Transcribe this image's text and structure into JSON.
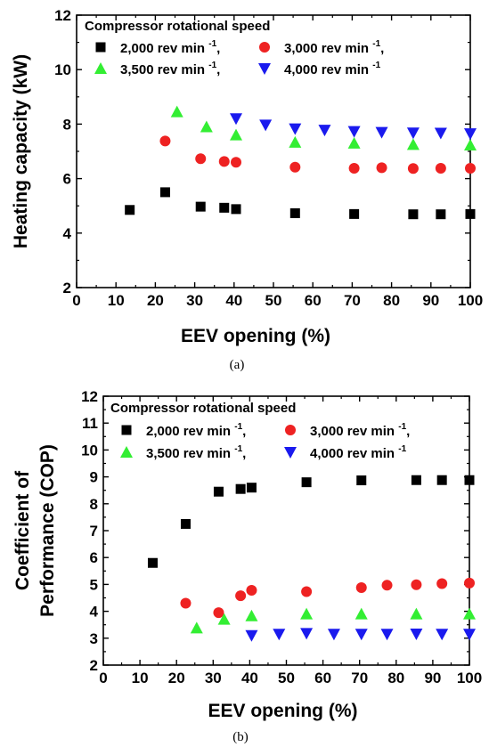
{
  "chart_data": [
    {
      "type": "scatter",
      "panel_label": "(a)",
      "xlabel": "EEV opening (%)",
      "ylabel": "Heating capacity (kW)",
      "xlim": [
        0,
        100
      ],
      "ylim": [
        2,
        12
      ],
      "xticks": [
        0,
        10,
        20,
        30,
        40,
        50,
        60,
        70,
        80,
        90,
        100
      ],
      "yticks": [
        2,
        4,
        6,
        8,
        10,
        12
      ],
      "legend_title": "Compressor rotational speed",
      "legend_position": "top-left",
      "series": [
        {
          "name": "2,000 rev min",
          "unit_exponent": "-1",
          "sep": ",",
          "marker": "square",
          "color": "#000000",
          "points": [
            [
              13.5,
              4.85
            ],
            [
              22.5,
              5.5
            ],
            [
              31.5,
              4.97
            ],
            [
              37.5,
              4.93
            ],
            [
              40.5,
              4.88
            ],
            [
              55.5,
              4.73
            ],
            [
              70.5,
              4.7
            ],
            [
              85.5,
              4.69
            ],
            [
              92.5,
              4.69
            ],
            [
              100,
              4.7
            ]
          ]
        },
        {
          "name": "3,000 rev min",
          "unit_exponent": "-1",
          "sep": ",",
          "marker": "circle",
          "color": "#ee2222",
          "points": [
            [
              22.5,
              7.38
            ],
            [
              31.5,
              6.73
            ],
            [
              37.5,
              6.63
            ],
            [
              40.5,
              6.6
            ],
            [
              55.5,
              6.42
            ],
            [
              70.5,
              6.38
            ],
            [
              77.5,
              6.4
            ],
            [
              85.5,
              6.37
            ],
            [
              92.5,
              6.38
            ],
            [
              100,
              6.38
            ]
          ]
        },
        {
          "name": "3,500 rev min",
          "unit_exponent": "-1",
          "sep": ",",
          "marker": "triangle-up",
          "color": "#33ee33",
          "points": [
            [
              25.5,
              8.45
            ],
            [
              33,
              7.9
            ],
            [
              40.5,
              7.6
            ],
            [
              55.5,
              7.33
            ],
            [
              70.5,
              7.3
            ],
            [
              85.5,
              7.25
            ],
            [
              100,
              7.23
            ]
          ]
        },
        {
          "name": "4,000 rev min",
          "unit_exponent": "-1",
          "sep": "",
          "marker": "triangle-down",
          "color": "#1a1aee",
          "points": [
            [
              40.5,
              8.2
            ],
            [
              48,
              7.97
            ],
            [
              55.5,
              7.83
            ],
            [
              63,
              7.78
            ],
            [
              70.5,
              7.73
            ],
            [
              77.5,
              7.7
            ],
            [
              85.5,
              7.68
            ],
            [
              92.5,
              7.67
            ],
            [
              100,
              7.65
            ]
          ]
        }
      ]
    },
    {
      "type": "scatter",
      "panel_label": "(b)",
      "xlabel": "EEV opening (%)",
      "ylabel_lines": [
        "Coefficient of",
        "Performance (COP)"
      ],
      "xlim": [
        0,
        100
      ],
      "ylim": [
        2,
        12
      ],
      "xticks": [
        0,
        10,
        20,
        30,
        40,
        50,
        60,
        70,
        80,
        90,
        100
      ],
      "yticks": [
        2,
        3,
        4,
        5,
        6,
        7,
        8,
        9,
        10,
        11,
        12
      ],
      "legend_title": "Compressor rotational speed",
      "legend_position": "top-left",
      "series": [
        {
          "name": "2,000 rev min",
          "unit_exponent": "-1",
          "sep": ",",
          "marker": "square",
          "color": "#000000",
          "points": [
            [
              13.5,
              5.8
            ],
            [
              22.5,
              7.25
            ],
            [
              31.5,
              8.45
            ],
            [
              37.5,
              8.55
            ],
            [
              40.5,
              8.6
            ],
            [
              55.5,
              8.8
            ],
            [
              70.5,
              8.87
            ],
            [
              85.5,
              8.88
            ],
            [
              92.5,
              8.88
            ],
            [
              100,
              8.88
            ]
          ]
        },
        {
          "name": "3,000 rev min",
          "unit_exponent": "-1",
          "sep": ",",
          "marker": "circle",
          "color": "#ee2222",
          "points": [
            [
              22.5,
              4.3
            ],
            [
              31.5,
              3.95
            ],
            [
              37.5,
              4.58
            ],
            [
              40.5,
              4.78
            ],
            [
              55.5,
              4.73
            ],
            [
              70.5,
              4.88
            ],
            [
              77.5,
              4.97
            ],
            [
              85.5,
              4.99
            ],
            [
              92.5,
              5.03
            ],
            [
              100,
              5.05
            ]
          ]
        },
        {
          "name": "3,500 rev min",
          "unit_exponent": "-1",
          "sep": ",",
          "marker": "triangle-up",
          "color": "#33ee33",
          "points": [
            [
              25.5,
              3.38
            ],
            [
              33,
              3.7
            ],
            [
              40.5,
              3.83
            ],
            [
              55.5,
              3.9
            ],
            [
              70.5,
              3.9
            ],
            [
              85.5,
              3.9
            ],
            [
              100,
              3.9
            ]
          ]
        },
        {
          "name": "4,000 rev min",
          "unit_exponent": "-1",
          "sep": "",
          "marker": "triangle-down",
          "color": "#1a1aee",
          "points": [
            [
              40.5,
              3.1
            ],
            [
              48,
              3.15
            ],
            [
              55.5,
              3.18
            ],
            [
              63,
              3.15
            ],
            [
              70.5,
              3.15
            ],
            [
              77.5,
              3.15
            ],
            [
              85.5,
              3.16
            ],
            [
              92.5,
              3.15
            ],
            [
              100,
              3.15
            ]
          ]
        }
      ]
    }
  ]
}
